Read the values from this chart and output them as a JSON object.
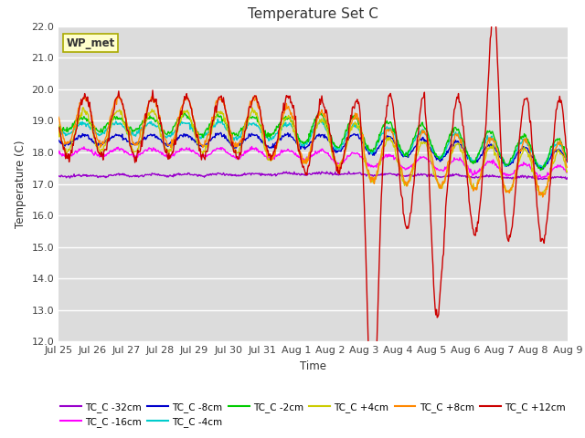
{
  "title": "Temperature Set C",
  "xlabel": "Time",
  "ylabel": "Temperature (C)",
  "ylim": [
    12.0,
    22.0
  ],
  "yticks": [
    12.0,
    13.0,
    14.0,
    15.0,
    16.0,
    17.0,
    18.0,
    19.0,
    20.0,
    21.0,
    22.0
  ],
  "bg_color": "#dcdcdc",
  "fig_color": "#ffffff",
  "legend_label": "WP_met",
  "series": [
    {
      "label": "TC_C -32cm",
      "color": "#9900cc"
    },
    {
      "label": "TC_C -16cm",
      "color": "#ff00ff"
    },
    {
      "label": "TC_C -8cm",
      "color": "#0000cc"
    },
    {
      "label": "TC_C -4cm",
      "color": "#00cccc"
    },
    {
      "label": "TC_C -2cm",
      "color": "#00cc00"
    },
    {
      "label": "TC_C +4cm",
      "color": "#cccc00"
    },
    {
      "label": "TC_C +8cm",
      "color": "#ff8800"
    },
    {
      "label": "TC_C +12cm",
      "color": "#cc0000"
    }
  ],
  "x_tick_labels": [
    "Jul 25",
    "Jul 26",
    "Jul 27",
    "Jul 28",
    "Jul 29",
    "Jul 30",
    "Jul 31",
    "Aug 1",
    "Aug 2",
    "Aug 3",
    "Aug 4",
    "Aug 5",
    "Aug 6",
    "Aug 7",
    "Aug 8",
    "Aug 9"
  ],
  "n_points": 720,
  "total_days": 15
}
